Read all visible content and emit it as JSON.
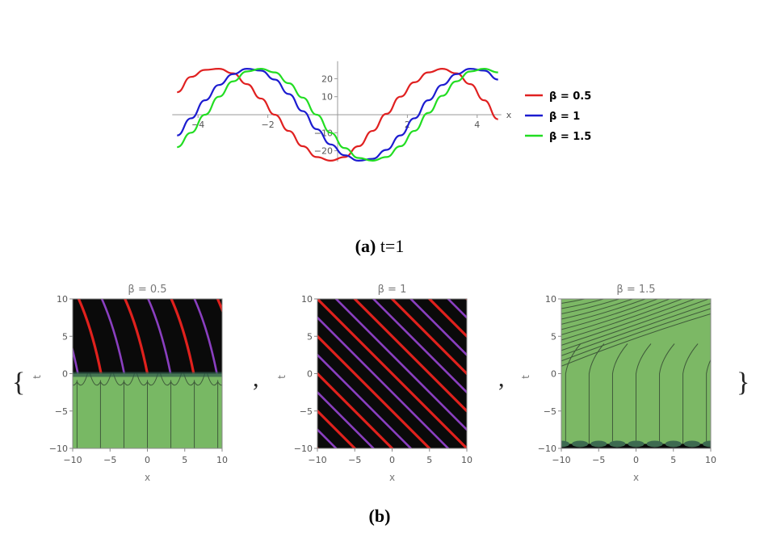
{
  "caption_a": {
    "label": "(a)",
    "text": "t=1"
  },
  "caption_b": {
    "label": "(b)"
  },
  "braces": {
    "open": "{",
    "close": "}",
    "sep": ","
  },
  "chart_data": [
    {
      "type": "line",
      "xlabel": "x",
      "ylabel": "",
      "xlim": [
        -4.6,
        4.6
      ],
      "ylim": [
        -26,
        27
      ],
      "xticks": [
        -4,
        -2,
        2,
        4
      ],
      "yticks": [
        -20,
        -10,
        10,
        20
      ],
      "legend_position": "right",
      "grid": false,
      "series": [
        {
          "name": "β = 0.5",
          "color": "#e02020",
          "x": [
            -4.6,
            -4.2,
            -3.8,
            -3.4,
            -3.0,
            -2.6,
            -2.2,
            -1.8,
            -1.4,
            -1.0,
            -0.6,
            -0.2,
            0.2,
            0.6,
            1.0,
            1.4,
            1.8,
            2.2,
            2.6,
            3.0,
            3.4,
            3.8,
            4.2,
            4.6
          ],
          "y": [
            12.5,
            21.0,
            24.9,
            25.5,
            23.0,
            17.0,
            9.0,
            0.0,
            -9.0,
            -17.5,
            -23.5,
            -25.5,
            -23.5,
            -17.5,
            -9.0,
            0.5,
            10.0,
            18.0,
            23.5,
            25.5,
            23.0,
            17.0,
            8.0,
            -2.5
          ]
        },
        {
          "name": "β = 1",
          "color": "#1c1cd0",
          "x": [
            -4.6,
            -4.2,
            -3.8,
            -3.4,
            -3.0,
            -2.6,
            -2.2,
            -1.8,
            -1.4,
            -1.0,
            -0.6,
            -0.2,
            0.2,
            0.6,
            1.0,
            1.4,
            1.8,
            2.2,
            2.6,
            3.0,
            3.4,
            3.8,
            4.2,
            4.6
          ],
          "y": [
            -11.5,
            -2.0,
            8.0,
            16.5,
            22.5,
            25.5,
            24.5,
            19.5,
            11.5,
            2.0,
            -8.0,
            -16.5,
            -22.5,
            -25.5,
            -24.5,
            -19.5,
            -11.5,
            -2.0,
            8.0,
            16.5,
            22.5,
            25.5,
            24.5,
            19.5
          ]
        },
        {
          "name": "β = 1.5",
          "color": "#22dd22",
          "x": [
            -4.6,
            -4.2,
            -3.8,
            -3.4,
            -3.0,
            -2.6,
            -2.2,
            -1.8,
            -1.4,
            -1.0,
            -0.6,
            -0.2,
            0.2,
            0.6,
            1.0,
            1.4,
            1.8,
            2.2,
            2.6,
            3.0,
            3.4,
            3.8,
            4.2,
            4.6
          ],
          "y": [
            -18.0,
            -10.0,
            0.0,
            10.0,
            18.5,
            24.0,
            25.5,
            23.5,
            17.5,
            9.5,
            0.0,
            -10.0,
            -18.5,
            -24.0,
            -25.5,
            -23.5,
            -17.5,
            -9.0,
            1.0,
            10.5,
            18.5,
            24.0,
            25.5,
            23.5
          ]
        }
      ]
    },
    {
      "type": "heatmap",
      "title": "β = 0.5",
      "xlabel": "x",
      "ylabel": "t",
      "xlim": [
        -10,
        10
      ],
      "ylim": [
        -10,
        10
      ],
      "xticks": [
        -10,
        -5,
        0,
        5,
        10
      ],
      "yticks": [
        -10,
        -5,
        0,
        5,
        10
      ],
      "colors": {
        "dark": "#0a0a0a",
        "red": "#e0211d",
        "purple": "#8a3fc0",
        "green": "#78b864",
        "contour": "#3f5a3a"
      }
    },
    {
      "type": "heatmap",
      "title": "β = 1",
      "xlabel": "x",
      "ylabel": "t",
      "xlim": [
        -10,
        10
      ],
      "ylim": [
        -10,
        10
      ],
      "xticks": [
        -10,
        -5,
        0,
        5,
        10
      ],
      "yticks": [
        -10,
        -5,
        0,
        5,
        10
      ],
      "colors": {
        "dark": "#0a0a0a",
        "red": "#e0211d",
        "purple": "#8a3fc0"
      }
    },
    {
      "type": "heatmap",
      "title": "β = 1.5",
      "xlabel": "x",
      "ylabel": "t",
      "xlim": [
        -10,
        10
      ],
      "ylim": [
        -10,
        10
      ],
      "xticks": [
        -10,
        -5,
        0,
        5,
        10
      ],
      "yticks": [
        -10,
        -5,
        0,
        5,
        10
      ],
      "colors": {
        "green": "#7cb865",
        "contour": "#3f5a3a",
        "dark": "#0a0a0a"
      }
    }
  ]
}
